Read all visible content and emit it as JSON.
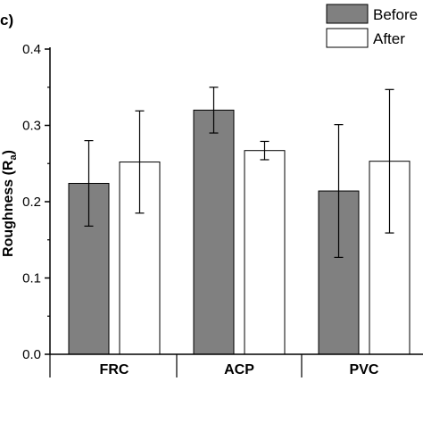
{
  "panel_label": "c)",
  "chart_data": {
    "type": "bar",
    "categories": [
      "FRC",
      "ACP",
      "PVC"
    ],
    "series": [
      {
        "name": "Before",
        "values": [
          0.224,
          0.32,
          0.214
        ],
        "errors": [
          0.056,
          0.03,
          0.087
        ]
      },
      {
        "name": "After",
        "values": [
          0.252,
          0.267,
          0.253
        ],
        "errors": [
          0.067,
          0.012,
          0.094
        ]
      }
    ],
    "ylabel": "Roughness (Rₐ)",
    "ylabel_main": "Roughness (R",
    "ylabel_sub": "a",
    "ylabel_tail": ")",
    "xlabel": "",
    "ylim": [
      0.0,
      0.4
    ],
    "yticks": [
      "0.0",
      "0.1",
      "0.2",
      "0.3",
      "0.4"
    ],
    "ytick_values": [
      0.0,
      0.1,
      0.2,
      0.3,
      0.4
    ],
    "legend_position": "top-right",
    "grid": false,
    "colors": {
      "Before": "#808080",
      "After": "#ffffff",
      "edge": "#000000"
    }
  }
}
